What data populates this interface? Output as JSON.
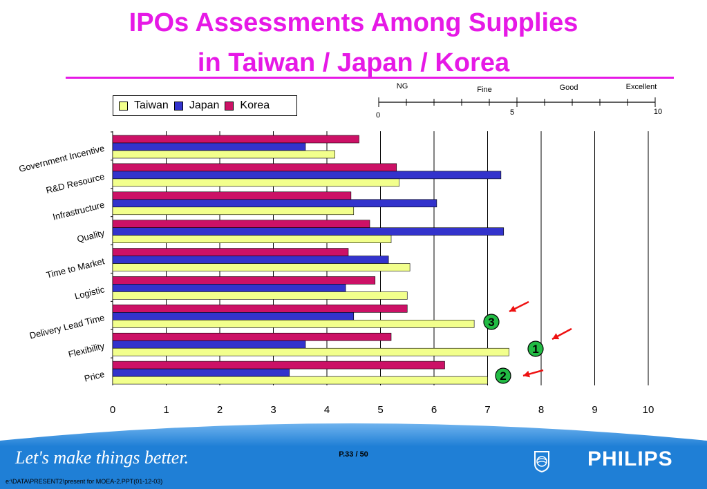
{
  "title": {
    "line1": "IPOs Assessments Among Supplies",
    "line2": "in Taiwan / Japan / Korea"
  },
  "legend": [
    {
      "name": "Taiwan",
      "color": "#f2ff8c"
    },
    {
      "name": "Japan",
      "color": "#3333cc"
    },
    {
      "name": "Korea",
      "color": "#cc1166"
    }
  ],
  "scale_key": {
    "labels": [
      "NG",
      "Fine",
      "Good",
      "Excellent"
    ],
    "ticks": [
      "0",
      "5",
      "10"
    ]
  },
  "chart_data": {
    "type": "bar",
    "orientation": "horizontal",
    "title": "IPOs Assessments Among Supplies in Taiwan / Japan / Korea",
    "categories": [
      "Government Incentive",
      "R&D Resource",
      "Infrastructure",
      "Quality",
      "Time to Market",
      "Logistic",
      "Delivery Lead Time",
      "Flexibility",
      "Price"
    ],
    "series": [
      {
        "name": "Korea",
        "color": "#cc1166",
        "values": [
          4.6,
          5.3,
          4.45,
          4.8,
          4.4,
          4.9,
          5.5,
          5.2,
          6.2
        ]
      },
      {
        "name": "Japan",
        "color": "#3333cc",
        "values": [
          3.6,
          7.25,
          6.05,
          7.3,
          5.15,
          4.35,
          4.5,
          3.6,
          3.3
        ]
      },
      {
        "name": "Taiwan",
        "color": "#f2ff8c",
        "values": [
          4.15,
          5.35,
          4.5,
          5.2,
          5.55,
          5.5,
          6.75,
          7.4,
          7.0
        ]
      }
    ],
    "xlim": [
      0,
      10
    ],
    "xticks": [
      "0",
      "1",
      "2",
      "3",
      "4",
      "5",
      "6",
      "7",
      "8",
      "9",
      "10"
    ],
    "grid": "vertical",
    "legend_position": "top-left",
    "annotations": [
      {
        "label": "3",
        "category": "Delivery Lead Time"
      },
      {
        "label": "1",
        "category": "Flexibility"
      },
      {
        "label": "2",
        "category": "Price"
      }
    ]
  },
  "footer": {
    "slogan": "Let's make things better.",
    "page": "P.33 / 50",
    "brand": "PHILIPS",
    "file_path": "e:\\DATA\\PRESENT2\\present for MOEA-2.PPT(01-12-03)"
  },
  "colors": {
    "title": "#e619e6",
    "band": "#1f7fd6",
    "band_light": "#6fb3ee",
    "annotation": "#22bb44",
    "arrow": "#ee1111"
  }
}
